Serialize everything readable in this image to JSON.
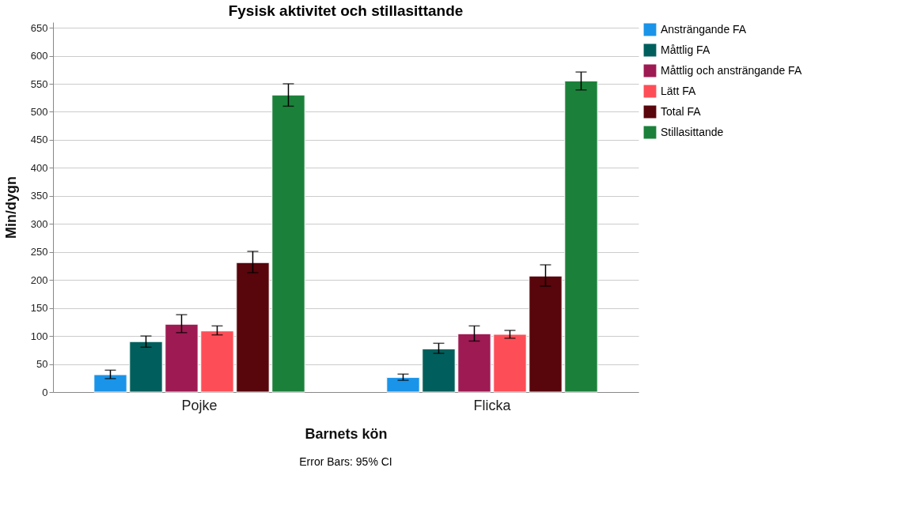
{
  "chart_data": {
    "type": "bar",
    "title": "Fysisk aktivitet och stillasittande",
    "xlabel": "Barnets kön",
    "ylabel": "Min/dygn",
    "categories": [
      "Pojke",
      "Flicka"
    ],
    "series": [
      {
        "name": "Ansträngande FA",
        "color": "#1a94e8",
        "values": [
          31,
          26
        ],
        "errors": [
          [
            24,
            39
          ],
          [
            21,
            32
          ]
        ]
      },
      {
        "name": "Måttlig FA",
        "color": "#005f5c",
        "values": [
          90,
          77
        ],
        "errors": [
          [
            80,
            100
          ],
          [
            69,
            87
          ]
        ]
      },
      {
        "name": "Måttlig och ansträngande FA",
        "color": "#9e1a52",
        "values": [
          121,
          104
        ],
        "errors": [
          [
            106,
            138
          ],
          [
            91,
            118
          ]
        ]
      },
      {
        "name": "Lätt FA",
        "color": "#fd4e57",
        "values": [
          109,
          103
        ],
        "errors": [
          [
            102,
            118
          ],
          [
            96,
            110
          ]
        ]
      },
      {
        "name": "Total FA",
        "color": "#58050b",
        "values": [
          231,
          207
        ],
        "errors": [
          [
            213,
            251
          ],
          [
            189,
            227
          ]
        ]
      },
      {
        "name": "Stillasittande",
        "color": "#1b813a",
        "values": [
          530,
          555
        ],
        "errors": [
          [
            510,
            550
          ],
          [
            539,
            571
          ]
        ]
      }
    ],
    "ylim": [
      0,
      660
    ],
    "yticks": [
      0,
      50,
      100,
      150,
      200,
      250,
      300,
      350,
      400,
      450,
      500,
      550,
      600,
      650
    ],
    "grid": "y",
    "legend": "top right",
    "annotations": [
      "Error Bars: 95% CI"
    ]
  }
}
